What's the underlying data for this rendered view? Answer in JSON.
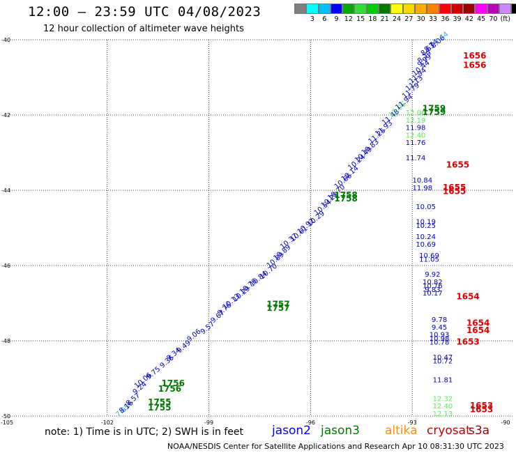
{
  "header": {
    "title": "12:00 – 23:59 UTC 04/08/2023",
    "subtitle": "12 hour collection of altimeter wave heights"
  },
  "colorbar": {
    "colors": [
      "#7f7f7f",
      "#00ffff",
      "#00bfff",
      "#0000ff",
      "#00aa00",
      "#33dd33",
      "#00cc00",
      "#007a00",
      "#ffff00",
      "#ffd700",
      "#ffaa00",
      "#ff7f00",
      "#ff0000",
      "#cc0000",
      "#990000",
      "#ff00ff",
      "#bb00bb",
      "#cc88ff",
      "#000000"
    ],
    "labels": [
      "3",
      "6",
      "9",
      "12",
      "15",
      "18",
      "21",
      "24",
      "27",
      "30",
      "33",
      "36",
      "39",
      "42",
      "45",
      "70",
      "(ft)"
    ]
  },
  "axes": {
    "lat_ticks": [
      "-40",
      "-42",
      "-44",
      "-46",
      "-48",
      "-50"
    ],
    "lon_ticks": [
      "-105",
      "-102",
      "-99",
      "-96",
      "-93",
      "-90"
    ]
  },
  "footer": {
    "note": "note:  1) Time is in UTC;  2) SWH is in feet",
    "legend": [
      {
        "name": "jason2",
        "color": "#0000ff"
      },
      {
        "name": "jason3",
        "color": "#007a00"
      },
      {
        "name": "altika",
        "color": "#ff8c00"
      },
      {
        "name": "cryosat",
        "color": "#cc0000"
      },
      {
        "name": "s3a",
        "color": "#990000"
      }
    ],
    "credit": "NOAA/NESDIS Center for Satellite Applications and Research    Apr 10 08:31:30 UTC 2023"
  },
  "chart_data": {
    "type": "scatter",
    "projection": "lat-lon",
    "xlim": [
      -105,
      -90
    ],
    "ylim": [
      -50,
      -40
    ],
    "track_A_color_by_swh": true,
    "track_A_values": [
      {
        "lon": -101.5,
        "lat": -49.9,
        "v": "7.65"
      },
      {
        "lon": -101.4,
        "lat": -49.8,
        "v": "8.16"
      },
      {
        "lon": -101.2,
        "lat": -49.6,
        "v": "8.57"
      },
      {
        "lon": -101.0,
        "lat": -49.3,
        "v": "9.24"
      },
      {
        "lon": -100.9,
        "lat": -49.1,
        "v": "10.06"
      },
      {
        "lon": -100.6,
        "lat": -48.9,
        "v": "9.75"
      },
      {
        "lon": -100.2,
        "lat": -48.6,
        "v": "9.36"
      },
      {
        "lon": -100.0,
        "lat": -48.4,
        "v": "9.34"
      },
      {
        "lon": -99.7,
        "lat": -48.2,
        "v": "9.49"
      },
      {
        "lon": -99.4,
        "lat": -47.9,
        "v": "9.06"
      },
      {
        "lon": -99.0,
        "lat": -47.7,
        "v": "9.57"
      },
      {
        "lon": -98.7,
        "lat": -47.4,
        "v": "9.67"
      },
      {
        "lon": -98.5,
        "lat": -47.2,
        "v": "9.76"
      },
      {
        "lon": -98.3,
        "lat": -47.0,
        "v": "10.13"
      },
      {
        "lon": -98.0,
        "lat": -46.8,
        "v": "10.29"
      },
      {
        "lon": -97.8,
        "lat": -46.6,
        "v": "10.76"
      },
      {
        "lon": -97.5,
        "lat": -46.4,
        "v": "10.84"
      },
      {
        "lon": -97.2,
        "lat": -46.2,
        "v": "10.70"
      },
      {
        "lon": -97.0,
        "lat": -45.9,
        "v": "10.89"
      },
      {
        "lon": -96.8,
        "lat": -45.7,
        "v": "10.89"
      },
      {
        "lon": -96.6,
        "lat": -45.4,
        "v": "10.37"
      },
      {
        "lon": -96.3,
        "lat": -45.2,
        "v": "10.61"
      },
      {
        "lon": -96.1,
        "lat": -45.0,
        "v": "10.92"
      },
      {
        "lon": -95.8,
        "lat": -44.8,
        "v": "10.29"
      },
      {
        "lon": -95.6,
        "lat": -44.5,
        "v": "10.54"
      },
      {
        "lon": -95.4,
        "lat": -44.3,
        "v": "10.25"
      },
      {
        "lon": -95.2,
        "lat": -44.1,
        "v": "10.70"
      },
      {
        "lon": -95.0,
        "lat": -43.8,
        "v": "10.66"
      },
      {
        "lon": -94.8,
        "lat": -43.6,
        "v": "10.14"
      },
      {
        "lon": -94.6,
        "lat": -43.3,
        "v": "10.24"
      },
      {
        "lon": -94.4,
        "lat": -43.1,
        "v": "10.49"
      },
      {
        "lon": -94.2,
        "lat": -42.9,
        "v": "10.83"
      },
      {
        "lon": -94.0,
        "lat": -42.6,
        "v": "11.25"
      },
      {
        "lon": -93.8,
        "lat": -42.4,
        "v": "11.93"
      },
      {
        "lon": -93.6,
        "lat": -42.1,
        "v": "11.48"
      },
      {
        "lon": -93.4,
        "lat": -41.9,
        "v": "12.06"
      },
      {
        "lon": -93.2,
        "lat": -41.7,
        "v": "11.94"
      },
      {
        "lon": -93.0,
        "lat": -41.4,
        "v": "11.79"
      },
      {
        "lon": -92.9,
        "lat": -41.2,
        "v": "11.13"
      },
      {
        "lon": -92.8,
        "lat": -41.0,
        "v": "11.94"
      },
      {
        "lon": -92.7,
        "lat": -40.8,
        "v": "10.44"
      },
      {
        "lon": -92.6,
        "lat": -40.6,
        "v": "9.99"
      },
      {
        "lon": -92.6,
        "lat": -40.5,
        "v": "8.29"
      },
      {
        "lon": -92.5,
        "lat": -40.3,
        "v": "8.63"
      },
      {
        "lon": -92.4,
        "lat": -40.2,
        "v": "8.74"
      },
      {
        "lon": -92.2,
        "lat": -40.1,
        "v": "8.06"
      },
      {
        "lon": -92.1,
        "lat": -40.0,
        "v": "7.64"
      }
    ],
    "track_B_values": [
      {
        "lon": -92.9,
        "lat": -42.0,
        "v": "12.06"
      },
      {
        "lon": -92.9,
        "lat": -42.2,
        "v": "12.19"
      },
      {
        "lon": -92.9,
        "lat": -42.4,
        "v": "11.98"
      },
      {
        "lon": -92.9,
        "lat": -42.6,
        "v": "12.40"
      },
      {
        "lon": -92.9,
        "lat": -42.8,
        "v": "11.76"
      },
      {
        "lon": -92.9,
        "lat": -43.2,
        "v": "11.74"
      },
      {
        "lon": -92.7,
        "lat": -43.8,
        "v": "10.84"
      },
      {
        "lon": -92.7,
        "lat": -44.0,
        "v": "11.98"
      },
      {
        "lon": -92.6,
        "lat": -44.5,
        "v": "10.05"
      },
      {
        "lon": -92.6,
        "lat": -44.9,
        "v": "10.19"
      },
      {
        "lon": -92.6,
        "lat": -45.0,
        "v": "10.25"
      },
      {
        "lon": -92.6,
        "lat": -45.3,
        "v": "10.24"
      },
      {
        "lon": -92.6,
        "lat": -45.5,
        "v": "10.69"
      },
      {
        "lon": -92.5,
        "lat": -45.8,
        "v": "10.69"
      },
      {
        "lon": -92.5,
        "lat": -45.9,
        "v": "11.05"
      },
      {
        "lon": -92.4,
        "lat": -46.3,
        "v": "9.92"
      },
      {
        "lon": -92.4,
        "lat": -46.5,
        "v": "10.82"
      },
      {
        "lon": -92.4,
        "lat": -46.6,
        "v": "10.76"
      },
      {
        "lon": -92.4,
        "lat": -46.7,
        "v": "9.83"
      },
      {
        "lon": -92.4,
        "lat": -46.8,
        "v": "10.17"
      },
      {
        "lon": -92.2,
        "lat": -47.5,
        "v": "9.78"
      },
      {
        "lon": -92.2,
        "lat": -47.7,
        "v": "9.45"
      },
      {
        "lon": -92.2,
        "lat": -47.9,
        "v": "10.93"
      },
      {
        "lon": -92.2,
        "lat": -48.0,
        "v": "10.98"
      },
      {
        "lon": -92.2,
        "lat": -48.1,
        "v": "10.78"
      },
      {
        "lon": -92.1,
        "lat": -48.5,
        "v": "10.47"
      },
      {
        "lon": -92.1,
        "lat": -48.6,
        "v": "10.72"
      },
      {
        "lon": -92.1,
        "lat": -49.1,
        "v": "11.81"
      },
      {
        "lon": -92.1,
        "lat": -49.6,
        "v": "12.32"
      },
      {
        "lon": -92.1,
        "lat": -49.8,
        "v": "12.40"
      },
      {
        "lon": -92.1,
        "lat": -50.0,
        "v": "12.13"
      }
    ],
    "time_labels": [
      {
        "lon": -100.8,
        "lat": -49.7,
        "t": "1755",
        "color": "#007a00"
      },
      {
        "lon": -100.8,
        "lat": -49.85,
        "t": "1755",
        "color": "#007a00"
      },
      {
        "lon": -100.4,
        "lat": -49.2,
        "t": "1756",
        "color": "#007a00"
      },
      {
        "lon": -100.5,
        "lat": -49.35,
        "t": "1756",
        "color": "#007a00"
      },
      {
        "lon": -97.3,
        "lat": -47.1,
        "t": "1757",
        "color": "#007a00"
      },
      {
        "lon": -97.3,
        "lat": -47.2,
        "t": "1757",
        "color": "#007a00"
      },
      {
        "lon": -95.3,
        "lat": -44.2,
        "t": "1758",
        "color": "#007a00"
      },
      {
        "lon": -95.3,
        "lat": -44.3,
        "t": "1758",
        "color": "#007a00"
      },
      {
        "lon": -92.7,
        "lat": -41.9,
        "t": "1759",
        "color": "#007a00"
      },
      {
        "lon": -92.7,
        "lat": -42.0,
        "t": "1759",
        "color": "#007a00"
      },
      {
        "lon": -91.5,
        "lat": -40.5,
        "t": "1656",
        "color": "#dd0000"
      },
      {
        "lon": -91.5,
        "lat": -40.75,
        "t": "1656",
        "color": "#dd0000"
      },
      {
        "lon": -92.0,
        "lat": -43.4,
        "t": "1655",
        "color": "#dd0000"
      },
      {
        "lon": -92.1,
        "lat": -44.0,
        "t": "1655",
        "color": "#dd0000"
      },
      {
        "lon": -92.1,
        "lat": -44.1,
        "t": "1655",
        "color": "#dd0000"
      },
      {
        "lon": -91.7,
        "lat": -46.9,
        "t": "1654",
        "color": "#dd0000"
      },
      {
        "lon": -91.4,
        "lat": -47.6,
        "t": "1654",
        "color": "#dd0000"
      },
      {
        "lon": -91.4,
        "lat": -47.8,
        "t": "1654",
        "color": "#dd0000"
      },
      {
        "lon": -91.7,
        "lat": -48.1,
        "t": "1653",
        "color": "#dd0000"
      },
      {
        "lon": -91.3,
        "lat": -49.8,
        "t": "1653",
        "color": "#dd0000"
      },
      {
        "lon": -91.3,
        "lat": -49.9,
        "t": "1653",
        "color": "#dd0000"
      }
    ]
  }
}
